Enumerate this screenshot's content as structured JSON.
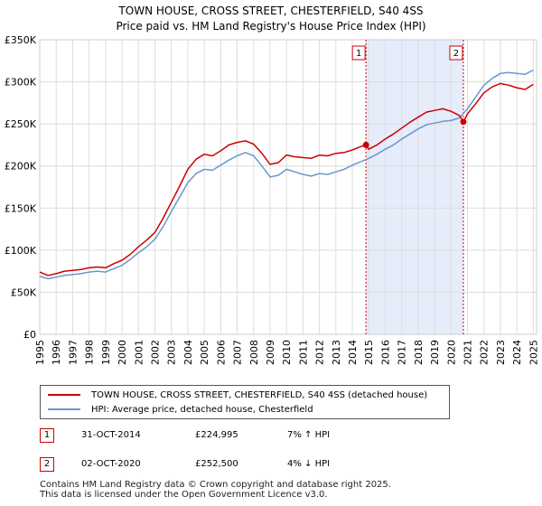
{
  "title_line1": "TOWN HOUSE, CROSS STREET, CHESTERFIELD, S40 4SS",
  "title_line2": "Price paid vs. HM Land Registry's House Price Index (HPI)",
  "colors": {
    "property": "#cc0000",
    "hpi": "#6699cc",
    "shade": "#e6ecfa",
    "grid": "#dddddd",
    "vline": "#cc0000"
  },
  "legend": {
    "property_label": "TOWN HOUSE, CROSS STREET, CHESTERFIELD, S40 4SS (detached house)",
    "hpi_label": "HPI: Average price, detached house, Chesterfield"
  },
  "events": [
    {
      "id": "1",
      "date": "31-OCT-2014",
      "price": "£224,995",
      "hpi_change": "7% ↑ HPI"
    },
    {
      "id": "2",
      "date": "02-OCT-2020",
      "price": "£252,500",
      "hpi_change": "4% ↓ HPI"
    }
  ],
  "footer": {
    "line1": "Contains HM Land Registry data © Crown copyright and database right 2025.",
    "line2": "This data is licensed under the Open Government Licence v3.0."
  },
  "chart_data": {
    "type": "line",
    "title": "TOWN HOUSE, CROSS STREET, CHESTERFIELD, S40 4SS",
    "subtitle": "Price paid vs. HM Land Registry's House Price Index (HPI)",
    "xlim": [
      1995,
      2025.2
    ],
    "ylim": [
      0,
      350000
    ],
    "yticks": [
      0,
      50000,
      100000,
      150000,
      200000,
      250000,
      300000,
      350000
    ],
    "ytick_labels": [
      "£0",
      "£50K",
      "£100K",
      "£150K",
      "£200K",
      "£250K",
      "£300K",
      "£350K"
    ],
    "xticks": [
      1995,
      1996,
      1997,
      1998,
      1999,
      2000,
      2001,
      2002,
      2003,
      2004,
      2005,
      2006,
      2007,
      2008,
      2009,
      2010,
      2011,
      2012,
      2013,
      2014,
      2015,
      2016,
      2017,
      2018,
      2019,
      2020,
      2021,
      2022,
      2023,
      2024,
      2025
    ],
    "shaded_range": [
      2014.83,
      2020.75
    ],
    "sales": [
      {
        "label": "1",
        "x": 2014.83,
        "y": 224995
      },
      {
        "label": "2",
        "x": 2020.75,
        "y": 252500
      }
    ],
    "series": [
      {
        "name": "TOWN HOUSE, CROSS STREET, CHESTERFIELD, S40 4SS (detached house)",
        "x": [
          1995,
          1995.5,
          1996,
          1996.5,
          1997,
          1997.5,
          1998,
          1998.5,
          1999,
          1999.5,
          2000,
          2000.5,
          2001,
          2001.5,
          2002,
          2002.5,
          2003,
          2003.5,
          2004,
          2004.5,
          2005,
          2005.5,
          2006,
          2006.5,
          2007,
          2007.5,
          2008,
          2008.5,
          2009,
          2009.5,
          2010,
          2010.5,
          2011,
          2011.5,
          2012,
          2012.5,
          2013,
          2013.5,
          2014,
          2014.5,
          2014.83,
          2015,
          2015.5,
          2016,
          2016.5,
          2017,
          2017.5,
          2018,
          2018.5,
          2019,
          2019.5,
          2020,
          2020.5,
          2020.75,
          2021,
          2021.5,
          2022,
          2022.5,
          2023,
          2023.5,
          2024,
          2024.5,
          2025
        ],
        "values": [
          74000,
          70000,
          72000,
          75000,
          76000,
          77000,
          79000,
          80000,
          79000,
          84000,
          88000,
          95000,
          104000,
          112000,
          121000,
          138000,
          157000,
          176000,
          196000,
          208000,
          214000,
          212000,
          218000,
          225000,
          228000,
          230000,
          226000,
          215000,
          202000,
          204000,
          213000,
          211000,
          210000,
          209000,
          213000,
          212000,
          215000,
          216000,
          219000,
          223000,
          224995,
          220000,
          225000,
          232000,
          238000,
          245000,
          252000,
          258000,
          264000,
          266000,
          268000,
          265000,
          260000,
          252500,
          262000,
          274000,
          287000,
          294000,
          298000,
          296000,
          293000,
          291000,
          297000
        ]
      },
      {
        "name": "HPI: Average price, detached house, Chesterfield",
        "x": [
          1995,
          1995.5,
          1996,
          1996.5,
          1997,
          1997.5,
          1998,
          1998.5,
          1999,
          1999.5,
          2000,
          2000.5,
          2001,
          2001.5,
          2002,
          2002.5,
          2003,
          2003.5,
          2004,
          2004.5,
          2005,
          2005.5,
          2006,
          2006.5,
          2007,
          2007.5,
          2008,
          2008.5,
          2009,
          2009.5,
          2010,
          2010.5,
          2011,
          2011.5,
          2012,
          2012.5,
          2013,
          2013.5,
          2014,
          2014.5,
          2015,
          2015.5,
          2016,
          2016.5,
          2017,
          2017.5,
          2018,
          2018.5,
          2019,
          2019.5,
          2020,
          2020.5,
          2021,
          2021.5,
          2022,
          2022.5,
          2023,
          2023.5,
          2024,
          2024.5,
          2025
        ],
        "values": [
          69000,
          66000,
          68000,
          70000,
          71000,
          72000,
          74000,
          75000,
          74000,
          78000,
          82000,
          89000,
          97000,
          104000,
          113000,
          128000,
          146000,
          163000,
          180000,
          191000,
          196000,
          195000,
          201000,
          207000,
          212000,
          216000,
          212000,
          200000,
          187000,
          189000,
          196000,
          193000,
          190000,
          188000,
          191000,
          190000,
          193000,
          196000,
          201000,
          205000,
          209000,
          214000,
          220000,
          225000,
          232000,
          238000,
          244000,
          249000,
          251000,
          253000,
          254000,
          257000,
          268000,
          282000,
          296000,
          304000,
          310000,
          311000,
          310000,
          309000,
          314000
        ]
      }
    ]
  }
}
